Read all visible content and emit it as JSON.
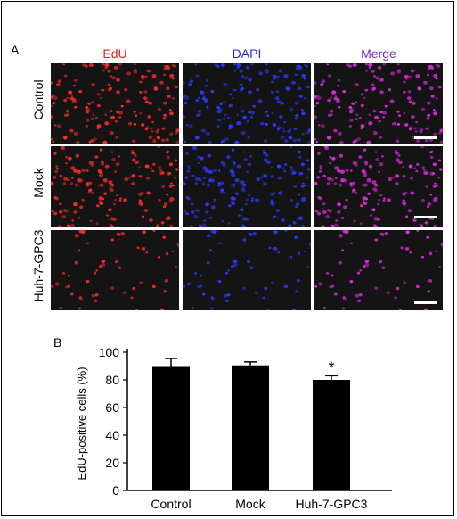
{
  "figure": {
    "panel_a_label": "A",
    "panel_b_label": "B",
    "columns": [
      {
        "label": "EdU",
        "color": "#e02020",
        "cell_color": "#ff2a2a"
      },
      {
        "label": "DAPI",
        "color": "#2828d8",
        "cell_color": "#2a3aff"
      },
      {
        "label": "Merge",
        "color": "#7a2cc8",
        "cell_color": "#e02ae0"
      }
    ],
    "rows": [
      {
        "label": "Control",
        "density": "high"
      },
      {
        "label": "Mock",
        "density": "high"
      },
      {
        "label": "Huh-7-GPC3",
        "density": "low"
      }
    ]
  },
  "chart_data": {
    "type": "bar",
    "categories": [
      "Control",
      "Mock",
      "Huh-7-GPC3"
    ],
    "values": [
      90,
      90.5,
      80
    ],
    "errors": [
      5.5,
      2.5,
      3
    ],
    "significance": [
      "",
      "",
      "*"
    ],
    "xlabel": "",
    "ylabel": "EdU-positive cells (%)",
    "ylim": [
      0,
      100
    ],
    "yticks": [
      0,
      20,
      40,
      60,
      80,
      100
    ],
    "bar_color": "#000000",
    "grid": false
  }
}
